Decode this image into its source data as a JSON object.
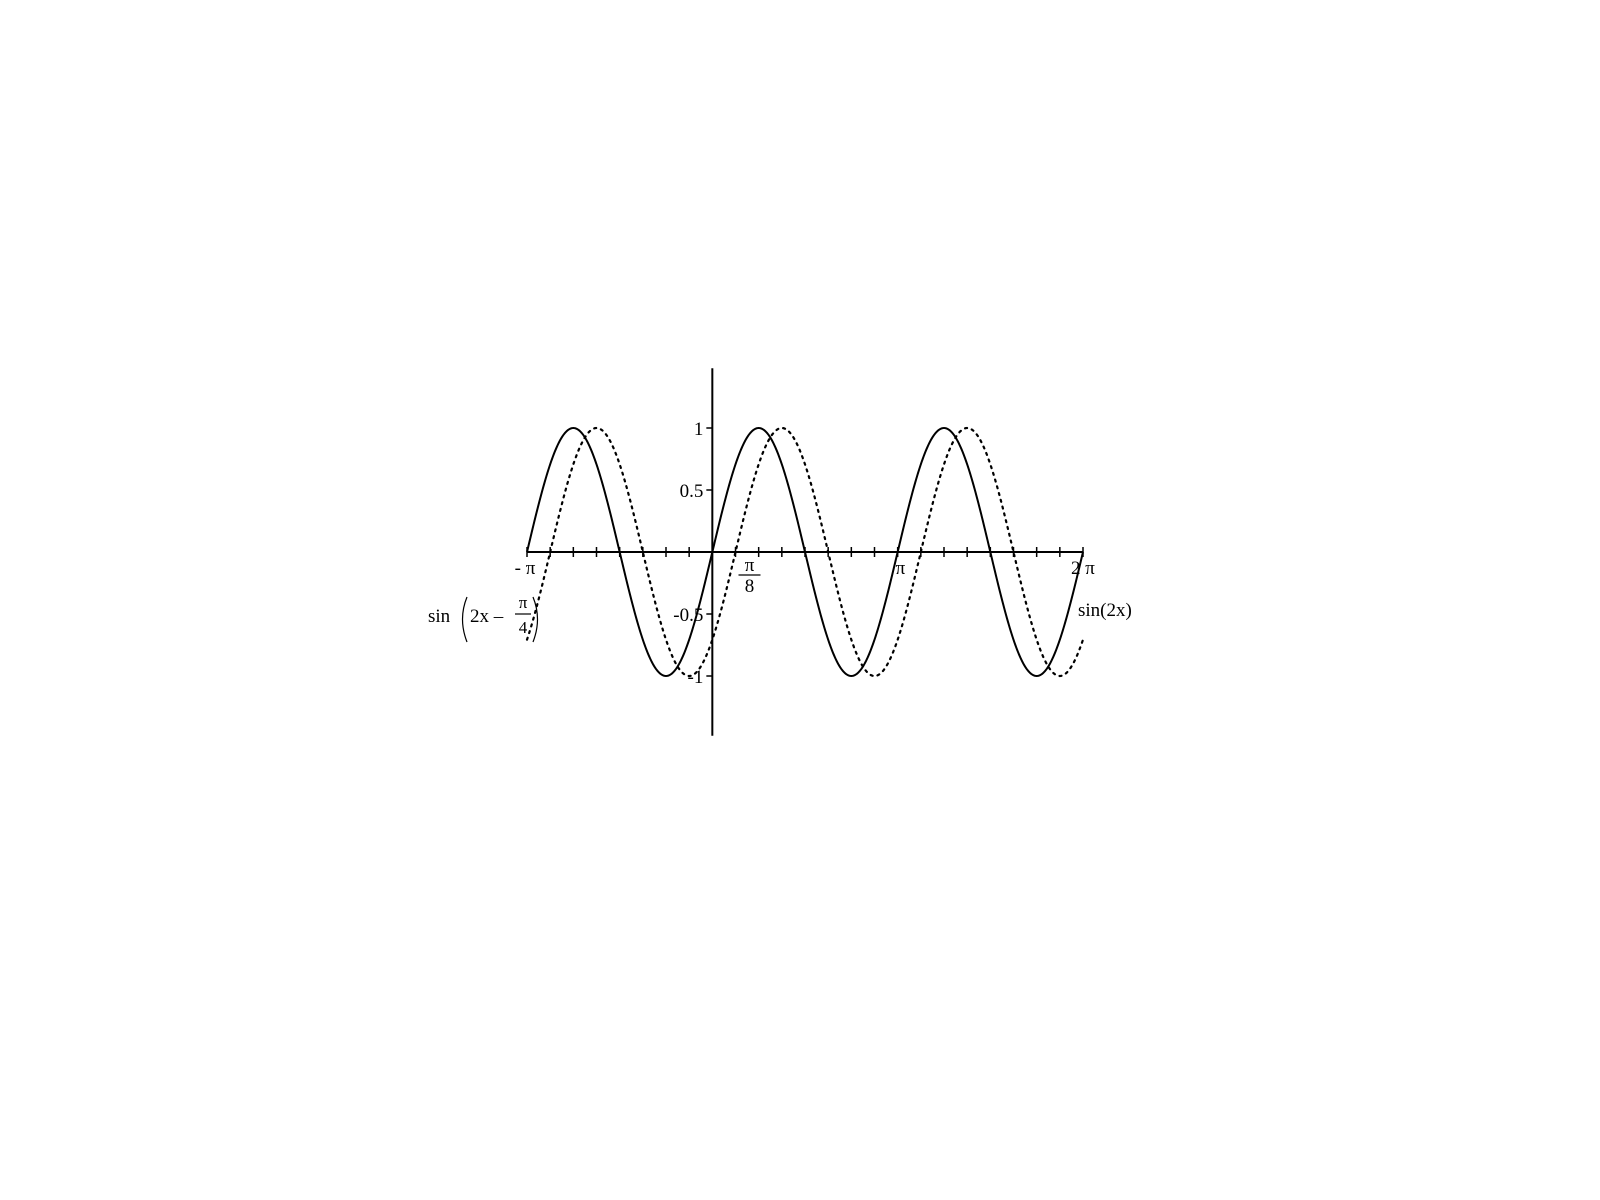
{
  "chart_data": {
    "type": "line",
    "title": "",
    "xlabel": "",
    "ylabel": "",
    "xlim": [
      -3.14159,
      6.28319
    ],
    "ylim": [
      -1.45,
      1.45
    ],
    "grid": false,
    "x_tick_labels": [
      {
        "value": -3.14159,
        "label": "- π"
      },
      {
        "value": 0.3927,
        "numerator": "π",
        "denominator": "8"
      },
      {
        "value": 3.14159,
        "label": "π"
      },
      {
        "value": 6.28319,
        "label": "2 π"
      }
    ],
    "y_tick_labels": [
      {
        "value": 1,
        "label": "1"
      },
      {
        "value": 0.5,
        "label": "0.5"
      },
      {
        "value": -0.5,
        "label": "-0.5"
      },
      {
        "value": -1,
        "label": "-1"
      }
    ],
    "series": [
      {
        "name": "sin(2x)",
        "style": "solid",
        "expression": "sin(2x)",
        "label": "sin(2x)",
        "x": [
          -3.1416,
          -2.7489,
          -2.3562,
          -1.9635,
          -1.5708,
          -1.1781,
          -0.7854,
          -0.3927,
          0,
          0.3927,
          0.7854,
          1.1781,
          1.5708,
          1.9635,
          2.3562,
          2.7489,
          3.1416,
          3.5343,
          3.927,
          4.3197,
          4.7124,
          5.1051,
          5.4978,
          5.8905,
          6.2832
        ],
        "values": [
          0,
          0.707,
          1,
          0.707,
          0,
          -0.707,
          -1,
          -0.707,
          0,
          0.707,
          1,
          0.707,
          0,
          -0.707,
          -1,
          -0.707,
          0,
          0.707,
          1,
          0.707,
          0,
          -0.707,
          -1,
          -0.707,
          0
        ]
      },
      {
        "name": "sin(2x - π/4)",
        "style": "dotted",
        "expression": "sin(2x - pi/4)",
        "label": {
          "prefix": "sin",
          "inner": "2x – ",
          "frac_num": "π",
          "frac_den": "4"
        },
        "x": [
          -3.1416,
          -2.7489,
          -2.3562,
          -1.9635,
          -1.5708,
          -1.1781,
          -0.7854,
          -0.3927,
          0,
          0.3927,
          0.7854,
          1.1781,
          1.5708,
          1.9635,
          2.3562,
          2.7489,
          3.1416,
          3.5343,
          3.927,
          4.3197,
          4.7124,
          5.1051,
          5.4978,
          5.8905,
          6.2832
        ],
        "values": [
          -0.707,
          0,
          0.707,
          1,
          0.707,
          0,
          -0.707,
          -1,
          -0.707,
          0,
          0.707,
          1,
          0.707,
          0,
          -0.707,
          -1,
          -0.707,
          0,
          0.707,
          1,
          0.707,
          0,
          -0.707,
          -1,
          -0.707
        ]
      }
    ]
  }
}
